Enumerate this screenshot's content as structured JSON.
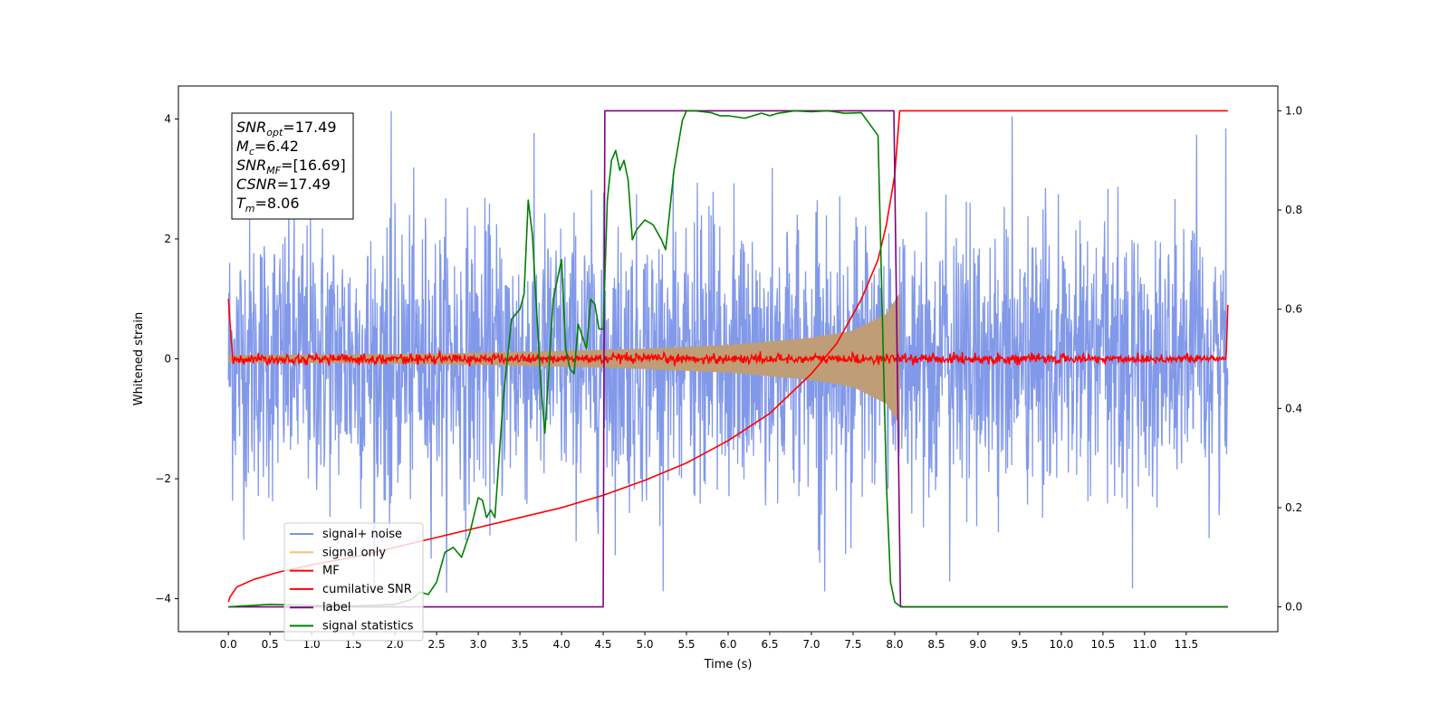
{
  "chart_data": {
    "type": "line",
    "title": "",
    "xlabel": "Time (s)",
    "ylabel": "Whitened strain",
    "y2label": "",
    "xlim": [
      -0.6,
      12.6
    ],
    "ylim": [
      -4.55,
      4.55
    ],
    "y2lim": [
      -0.05,
      1.05
    ],
    "xticks": [
      0.0,
      0.5,
      1.0,
      1.5,
      2.0,
      2.5,
      3.0,
      3.5,
      4.0,
      4.5,
      5.0,
      5.5,
      6.0,
      6.5,
      7.0,
      7.5,
      8.0,
      8.5,
      9.0,
      9.5,
      10.0,
      10.5,
      11.0,
      11.5
    ],
    "xtick_labels": [
      "0.0",
      "0.5",
      "1.0",
      "1.5",
      "2.0",
      "2.5",
      "3.0",
      "3.5",
      "4.0",
      "4.5",
      "5.0",
      "5.5",
      "6.0",
      "6.5",
      "7.0",
      "7.5",
      "8.0",
      "8.5",
      "9.0",
      "9.5",
      "10.0",
      "10.5",
      "11.0",
      "11.5"
    ],
    "yticks": [
      -4,
      -2,
      0,
      2,
      4
    ],
    "ytick_labels": [
      "−4",
      "−2",
      "0",
      "2",
      "4"
    ],
    "y2ticks": [
      0.0,
      0.2,
      0.4,
      0.6,
      0.8,
      1.0
    ],
    "y2tick_labels": [
      "0.0",
      "0.2",
      "0.4",
      "0.6",
      "0.8",
      "1.0"
    ],
    "grid": false,
    "legend_position": "lower-left",
    "annotation": {
      "lines": [
        {
          "sym": "SNR",
          "sub": "opt",
          "value": "=17.49"
        },
        {
          "sym": "M",
          "sub": "c",
          "value": "=6.42"
        },
        {
          "sym": "SNR",
          "sub": "MF",
          "value": "=[16.69]"
        },
        {
          "sym": "CSNR",
          "sub": "",
          "value": "=17.49"
        },
        {
          "sym": "T",
          "sub": "m",
          "value": "=8.06"
        }
      ]
    },
    "series": [
      {
        "name": "signal+ noise",
        "axis": "left",
        "color": "#7b93e8",
        "kind": "noise",
        "x_range": [
          0.0,
          12.0
        ],
        "amplitude_std": 1.15,
        "y_range_visible": [
          -4.0,
          4.15
        ]
      },
      {
        "name": "signal only",
        "axis": "left",
        "color": "#f5c27a",
        "fill_color": "#bf9d76",
        "kind": "chirp",
        "x_range": [
          0.0,
          8.06
        ],
        "envelope": {
          "x": [
            0.0,
            1.0,
            2.0,
            3.0,
            4.0,
            5.0,
            6.0,
            7.0,
            7.5,
            7.9,
            8.06
          ],
          "y": [
            0.06,
            0.07,
            0.08,
            0.1,
            0.13,
            0.17,
            0.23,
            0.35,
            0.47,
            0.75,
            1.1
          ]
        }
      },
      {
        "name": "MF",
        "axis": "left",
        "color": "#ff0000",
        "kind": "mf",
        "x_range": [
          0.0,
          12.0
        ],
        "baseline_std": 0.04,
        "start_value": 1.0,
        "end_value": 0.9
      },
      {
        "name": "cumilative SNR",
        "axis": "right",
        "color": "#ff0000",
        "x": [
          0.0,
          0.02,
          0.1,
          0.3,
          0.6,
          1.0,
          1.5,
          2.0,
          2.5,
          3.0,
          3.5,
          4.0,
          4.5,
          5.0,
          5.5,
          6.0,
          6.5,
          7.0,
          7.3,
          7.6,
          7.8,
          7.9,
          8.0,
          8.06,
          12.0
        ],
        "y": [
          0.01,
          0.02,
          0.04,
          0.055,
          0.07,
          0.085,
          0.1,
          0.12,
          0.14,
          0.16,
          0.18,
          0.2,
          0.225,
          0.255,
          0.29,
          0.335,
          0.39,
          0.47,
          0.53,
          0.62,
          0.7,
          0.77,
          0.87,
          1.0,
          1.0
        ]
      },
      {
        "name": "label",
        "axis": "right",
        "color": "#800080",
        "x": [
          0.0,
          4.5,
          4.52,
          7.99,
          8.07,
          12.0
        ],
        "y": [
          0.0,
          0.0,
          1.0,
          1.0,
          0.0,
          0.0
        ]
      },
      {
        "name": "signal statistics",
        "axis": "right",
        "color": "#008000",
        "x": [
          0.0,
          0.5,
          1.0,
          1.5,
          2.0,
          2.2,
          2.3,
          2.4,
          2.5,
          2.6,
          2.7,
          2.8,
          2.9,
          3.0,
          3.05,
          3.1,
          3.15,
          3.2,
          3.3,
          3.4,
          3.5,
          3.55,
          3.6,
          3.65,
          3.7,
          3.75,
          3.8,
          3.9,
          4.0,
          4.05,
          4.1,
          4.15,
          4.2,
          4.3,
          4.35,
          4.4,
          4.45,
          4.5,
          4.55,
          4.6,
          4.65,
          4.7,
          4.75,
          4.8,
          4.85,
          4.9,
          4.95,
          5.0,
          5.1,
          5.2,
          5.25,
          5.3,
          5.35,
          5.4,
          5.45,
          5.5,
          5.6,
          5.7,
          5.8,
          5.9,
          6.0,
          6.2,
          6.4,
          6.5,
          6.6,
          6.8,
          7.0,
          7.2,
          7.4,
          7.6,
          7.8,
          7.9,
          7.95,
          8.0,
          8.05,
          8.1,
          8.2,
          8.5,
          10.0,
          12.0
        ],
        "y": [
          0.0,
          0.005,
          0.003,
          0.002,
          0.005,
          0.015,
          0.03,
          0.025,
          0.05,
          0.11,
          0.12,
          0.1,
          0.15,
          0.22,
          0.215,
          0.18,
          0.195,
          0.18,
          0.42,
          0.58,
          0.6,
          0.63,
          0.82,
          0.75,
          0.6,
          0.45,
          0.35,
          0.62,
          0.7,
          0.52,
          0.48,
          0.47,
          0.57,
          0.52,
          0.62,
          0.61,
          0.56,
          0.56,
          0.82,
          0.9,
          0.92,
          0.88,
          0.9,
          0.86,
          0.74,
          0.76,
          0.77,
          0.78,
          0.77,
          0.74,
          0.72,
          0.8,
          0.88,
          0.93,
          0.98,
          1.0,
          1.0,
          0.998,
          0.996,
          0.99,
          0.99,
          0.985,
          0.995,
          0.99,
          0.995,
          1.0,
          0.998,
          1.0,
          0.995,
          0.996,
          0.95,
          0.25,
          0.05,
          0.01,
          0.003,
          0.0,
          0.0,
          0.0,
          0.0,
          0.0
        ]
      }
    ]
  }
}
